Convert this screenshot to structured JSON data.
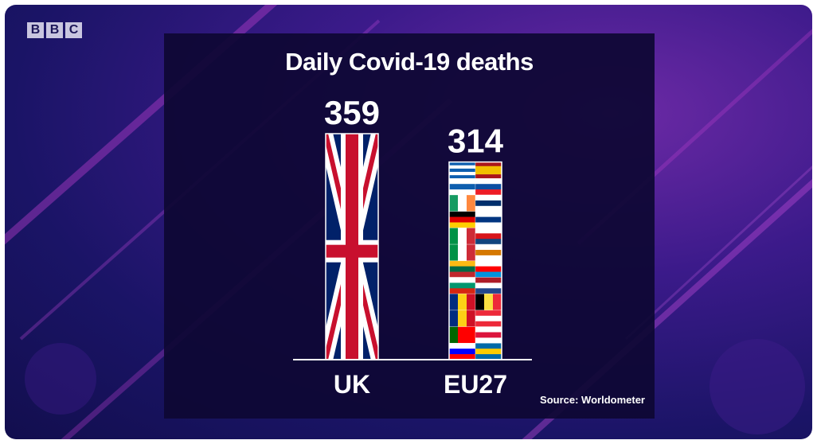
{
  "brand": {
    "letters": [
      "B",
      "B",
      "C"
    ]
  },
  "chart_data": {
    "type": "bar",
    "title": "Daily Covid-19 deaths",
    "categories": [
      "UK",
      "EU27"
    ],
    "values": [
      359,
      314
    ],
    "value_labels": [
      "359",
      "314"
    ],
    "fills": [
      "uk-flag",
      "eu-member-flags"
    ],
    "ylim": [
      0,
      359
    ],
    "grid": false,
    "xlabel": "",
    "ylabel": ""
  },
  "source": "Source: Worldometer",
  "colors": {
    "background": "#1a1466",
    "panel": "#0e0834",
    "accent": "#b13cc8",
    "text": "#ffffff",
    "uk_blue": "#012169",
    "uk_red": "#c8102e"
  }
}
